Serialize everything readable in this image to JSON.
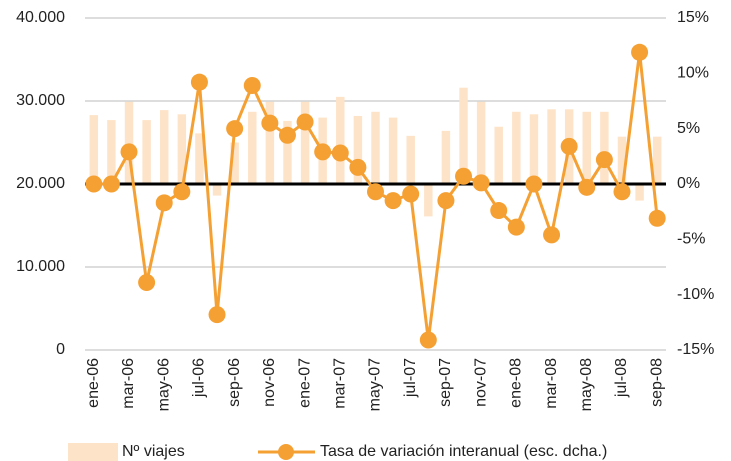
{
  "chart_data": {
    "type": "bar_line",
    "categories": [
      "ene-06",
      null,
      "mar-06",
      null,
      "may-06",
      null,
      "jul-06",
      null,
      "sep-06",
      null,
      "nov-06",
      null,
      "ene-07",
      null,
      "mar-07",
      null,
      "may-07",
      null,
      "jul-07",
      null,
      "sep-07",
      null,
      "nov-07",
      null,
      "ene-08",
      null,
      "mar-08",
      null,
      "may-08",
      null,
      "jul-08",
      null,
      "sep-08"
    ],
    "series": [
      {
        "name": "Nº viajes",
        "type": "bar",
        "axis": "y",
        "color": "#fde3c8",
        "values": [
          28300,
          27700,
          29900,
          27700,
          28900,
          28400,
          26100,
          18600,
          25000,
          28700,
          29900,
          27600,
          29900,
          28000,
          30500,
          28200,
          28700,
          28000,
          25800,
          16100,
          26400,
          31600,
          29900,
          26900,
          28700,
          28400,
          29000,
          29000,
          28700,
          28700,
          25700,
          18000,
          25700
        ]
      },
      {
        "name": "Tasa de variación interanual (esc. dcha.)",
        "type": "line",
        "axis": "y2",
        "color": "#f5a033",
        "values": [
          0,
          0,
          2.9,
          -8.9,
          -1.7,
          -0.7,
          9.2,
          -11.8,
          5.0,
          8.9,
          5.5,
          4.4,
          5.6,
          2.9,
          2.8,
          1.5,
          -0.7,
          -1.5,
          -0.9,
          -14.1,
          -1.5,
          0.7,
          0.1,
          -2.4,
          -3.9,
          0,
          -4.6,
          3.4,
          -0.3,
          2.2,
          -0.7,
          11.9,
          -3.1
        ]
      }
    ],
    "ylim": [
      0,
      40000
    ],
    "yticks": [
      0,
      {
        "value": 10000,
        "label": "10.000"
      },
      {
        "value": 20000,
        "label": "20.000"
      },
      {
        "value": 30000,
        "label": "30.000"
      },
      {
        "value": 40000,
        "label": "40.000"
      }
    ],
    "y2lim": [
      -15,
      15
    ],
    "y2ticks": [
      {
        "value": -15,
        "label": "-15%"
      },
      {
        "value": -10,
        "label": "-10%"
      },
      {
        "value": -5,
        "label": "-5%"
      },
      {
        "value": 0,
        "label": "0%"
      },
      {
        "value": 5,
        "label": "5%"
      },
      {
        "value": 10,
        "label": "10%"
      },
      {
        "value": 15,
        "label": "15%"
      }
    ],
    "x_axis_crosses": 20000,
    "grid": true,
    "legend": "bottom"
  }
}
